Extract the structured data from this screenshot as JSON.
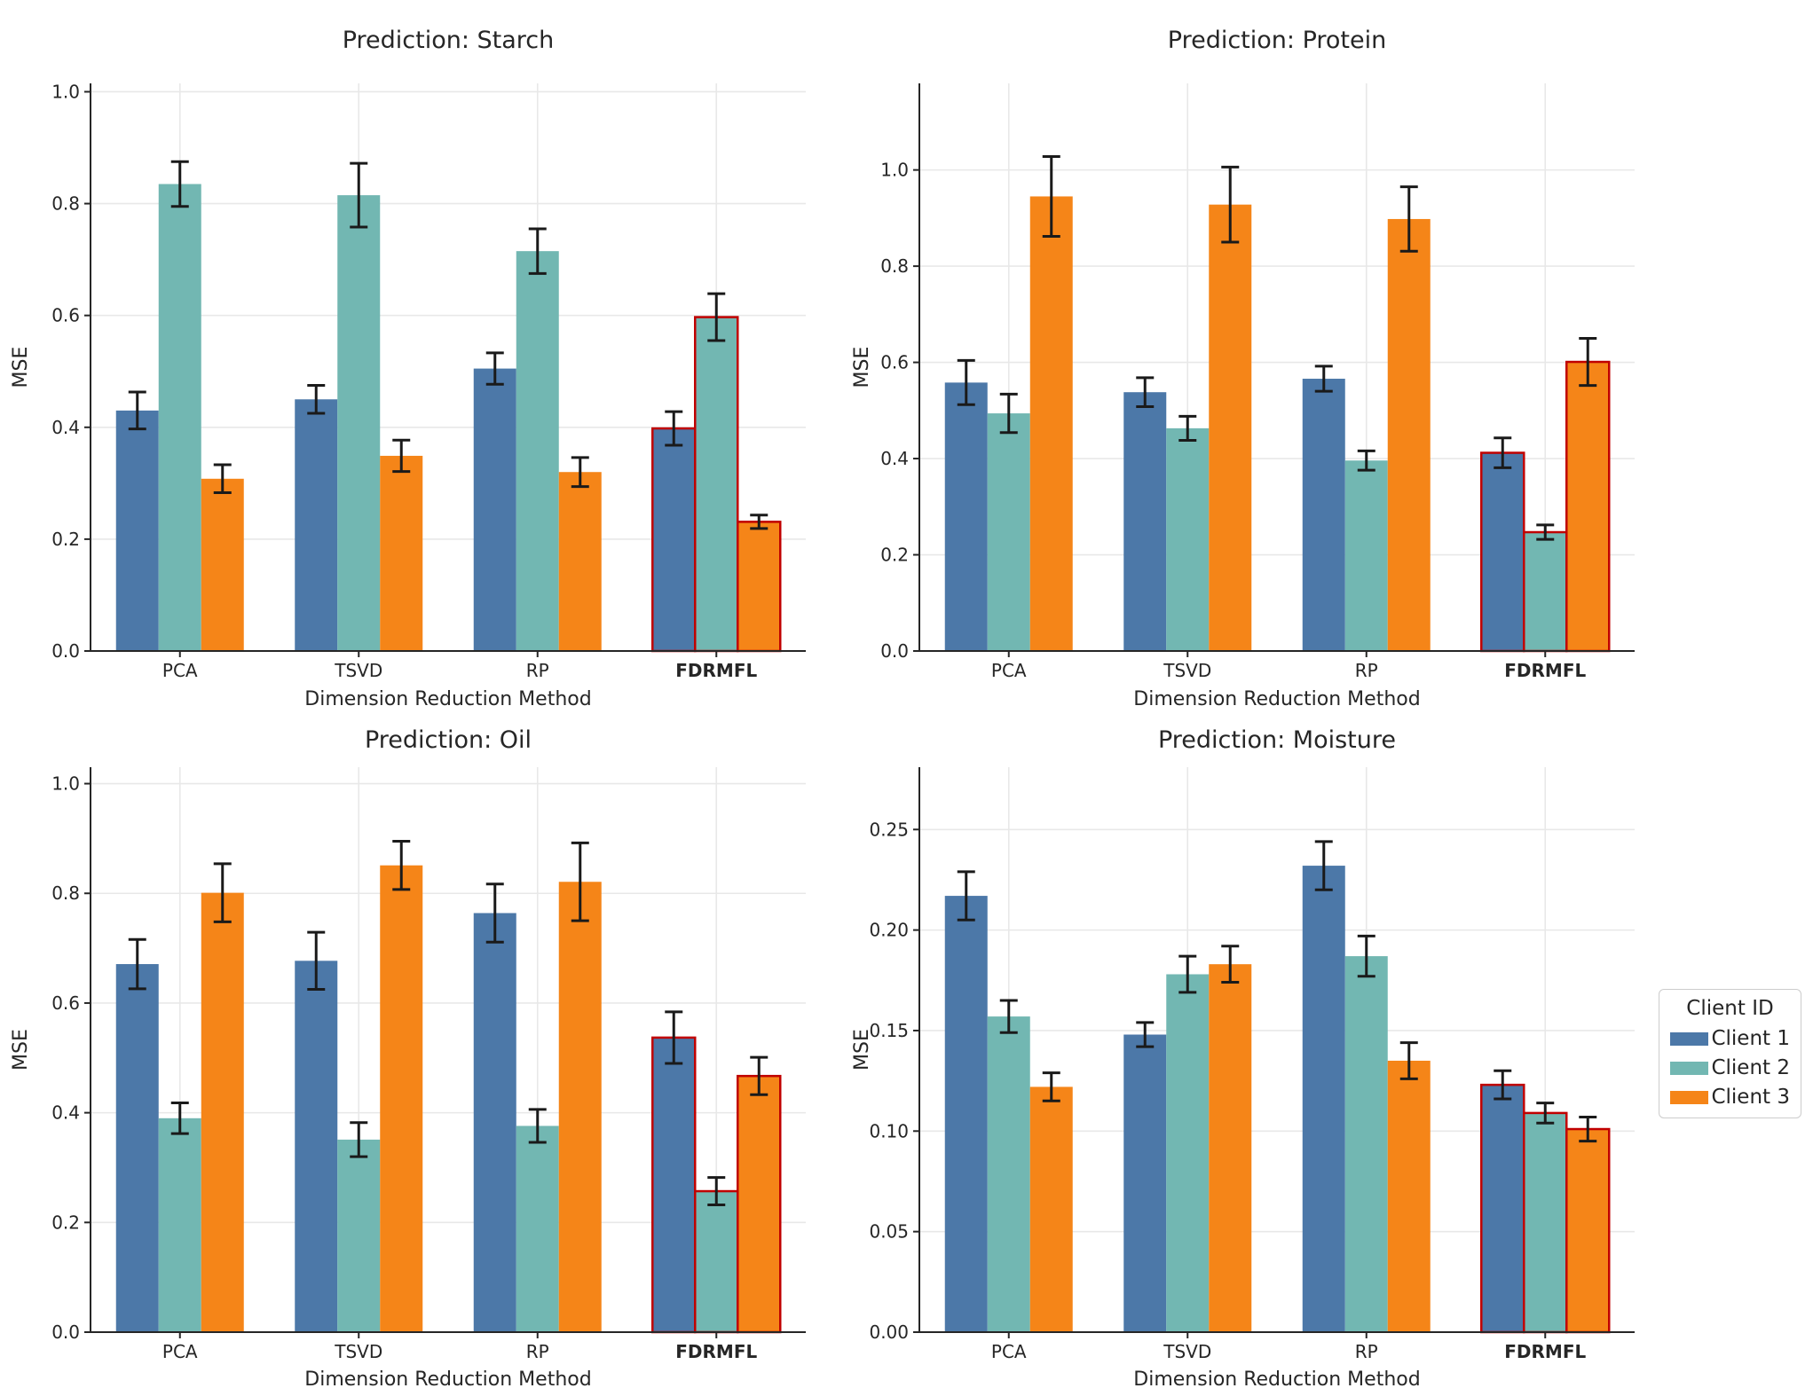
{
  "palette": {
    "client1": "#4C78A8",
    "client2": "#72B7B2",
    "client3": "#F58518",
    "highlight_edge": "#C00000",
    "highlight_label": "#C00000",
    "grid": "#E8E8E8",
    "spine": "#262626",
    "errorbar": "#1A1A1A",
    "background": "#FFFFFF"
  },
  "legend": {
    "title": "Client ID",
    "items": [
      {
        "label": "Client 1",
        "color": "#4C78A8"
      },
      {
        "label": "Client 2",
        "color": "#72B7B2"
      },
      {
        "label": "Client 3",
        "color": "#F58518"
      }
    ]
  },
  "shared": {
    "xlabel": "Dimension Reduction Method",
    "ylabel": "MSE",
    "categories": [
      "PCA",
      "TSVD",
      "RP",
      "FDRMFL"
    ],
    "highlight_category": "FDRMFL"
  },
  "chart_data": [
    {
      "type": "bar",
      "key": "starch",
      "title": "Prediction: Starch",
      "xlabel": "Dimension Reduction Method",
      "ylabel": "MSE",
      "categories": [
        "PCA",
        "TSVD",
        "RP",
        "FDRMFL"
      ],
      "ylim": [
        0,
        1.015
      ],
      "ytick_values": [
        0.0,
        0.2,
        0.4,
        0.6,
        0.8,
        1.0
      ],
      "ytick_labels": [
        "0.0",
        "0.2",
        "0.4",
        "0.6",
        "0.8",
        "1.0"
      ],
      "series": [
        {
          "name": "Client 1",
          "values": [
            0.43,
            0.45,
            0.505,
            0.398
          ],
          "errors": [
            0.033,
            0.025,
            0.028,
            0.03
          ]
        },
        {
          "name": "Client 2",
          "values": [
            0.835,
            0.815,
            0.715,
            0.597
          ],
          "errors": [
            0.04,
            0.057,
            0.04,
            0.042
          ]
        },
        {
          "name": "Client 3",
          "values": [
            0.308,
            0.349,
            0.32,
            0.231
          ],
          "errors": [
            0.025,
            0.028,
            0.026,
            0.012
          ]
        }
      ]
    },
    {
      "type": "bar",
      "key": "protein",
      "title": "Prediction: Protein",
      "xlabel": "Dimension Reduction Method",
      "ylabel": "MSE",
      "categories": [
        "PCA",
        "TSVD",
        "RP",
        "FDRMFL"
      ],
      "ylim": [
        0,
        1.18
      ],
      "ytick_values": [
        0.0,
        0.2,
        0.4,
        0.6,
        0.8,
        1.0
      ],
      "ytick_labels": [
        "0.0",
        "0.2",
        "0.4",
        "0.6",
        "0.8",
        "1.0"
      ],
      "series": [
        {
          "name": "Client 1",
          "values": [
            0.558,
            0.538,
            0.566,
            0.412
          ],
          "errors": [
            0.046,
            0.03,
            0.026,
            0.031
          ]
        },
        {
          "name": "Client 2",
          "values": [
            0.494,
            0.463,
            0.396,
            0.247
          ],
          "errors": [
            0.04,
            0.025,
            0.02,
            0.015
          ]
        },
        {
          "name": "Client 3",
          "values": [
            0.945,
            0.928,
            0.898,
            0.601
          ],
          "errors": [
            0.083,
            0.078,
            0.067,
            0.049
          ]
        }
      ]
    },
    {
      "type": "bar",
      "key": "oil",
      "title": "Prediction: Oil",
      "xlabel": "Dimension Reduction Method",
      "ylabel": "MSE",
      "categories": [
        "PCA",
        "TSVD",
        "RP",
        "FDRMFL"
      ],
      "ylim": [
        0,
        1.03
      ],
      "ytick_values": [
        0.0,
        0.2,
        0.4,
        0.6,
        0.8,
        1.0
      ],
      "ytick_labels": [
        "0.0",
        "0.2",
        "0.4",
        "0.6",
        "0.8",
        "1.0"
      ],
      "series": [
        {
          "name": "Client 1",
          "values": [
            0.671,
            0.677,
            0.764,
            0.537
          ],
          "errors": [
            0.045,
            0.052,
            0.053,
            0.047
          ]
        },
        {
          "name": "Client 2",
          "values": [
            0.39,
            0.351,
            0.376,
            0.257
          ],
          "errors": [
            0.028,
            0.031,
            0.03,
            0.025
          ]
        },
        {
          "name": "Client 3",
          "values": [
            0.801,
            0.851,
            0.821,
            0.467
          ],
          "errors": [
            0.053,
            0.044,
            0.071,
            0.034
          ]
        }
      ]
    },
    {
      "type": "bar",
      "key": "moisture",
      "title": "Prediction: Moisture",
      "xlabel": "Dimension Reduction Method",
      "ylabel": "MSE",
      "categories": [
        "PCA",
        "TSVD",
        "RP",
        "FDRMFL"
      ],
      "ylim": [
        0,
        0.281
      ],
      "ytick_values": [
        0.0,
        0.05,
        0.1,
        0.15,
        0.2,
        0.25
      ],
      "ytick_labels": [
        "0.00",
        "0.05",
        "0.10",
        "0.15",
        "0.20",
        "0.25"
      ],
      "series": [
        {
          "name": "Client 1",
          "values": [
            0.217,
            0.148,
            0.232,
            0.123
          ],
          "errors": [
            0.012,
            0.006,
            0.012,
            0.007
          ]
        },
        {
          "name": "Client 2",
          "values": [
            0.157,
            0.178,
            0.187,
            0.109
          ],
          "errors": [
            0.008,
            0.009,
            0.01,
            0.005
          ]
        },
        {
          "name": "Client 3",
          "values": [
            0.122,
            0.183,
            0.135,
            0.101
          ],
          "errors": [
            0.007,
            0.009,
            0.009,
            0.006
          ]
        }
      ]
    }
  ]
}
